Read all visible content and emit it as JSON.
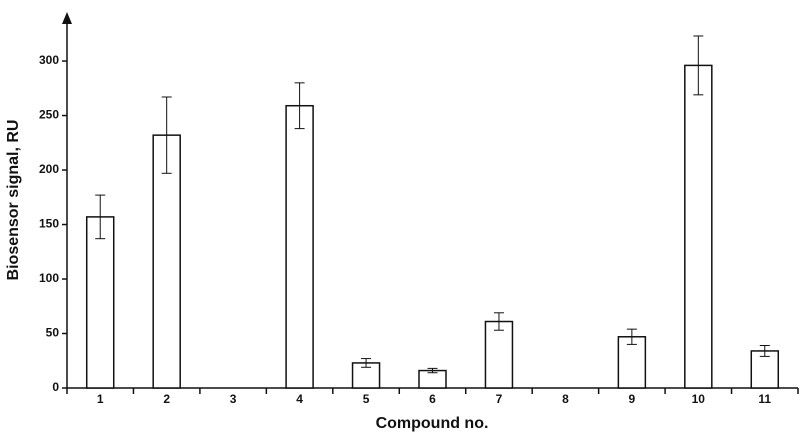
{
  "chart_data": {
    "type": "bar",
    "x_label": "Compound no.",
    "y_label": "Biosensor signal, RU",
    "categories": [
      "1",
      "2",
      "3",
      "4",
      "5",
      "6",
      "7",
      "8",
      "9",
      "10",
      "11"
    ],
    "values": [
      157,
      232,
      null,
      259,
      23,
      16,
      61,
      null,
      47,
      296,
      34
    ],
    "errors": [
      20,
      35,
      null,
      21,
      4,
      2,
      8,
      null,
      7,
      27,
      5
    ],
    "color": "#ffffff",
    "ylim": [
      0,
      345
    ],
    "yticks": [
      0,
      50,
      100,
      150,
      200,
      250,
      300
    ]
  }
}
